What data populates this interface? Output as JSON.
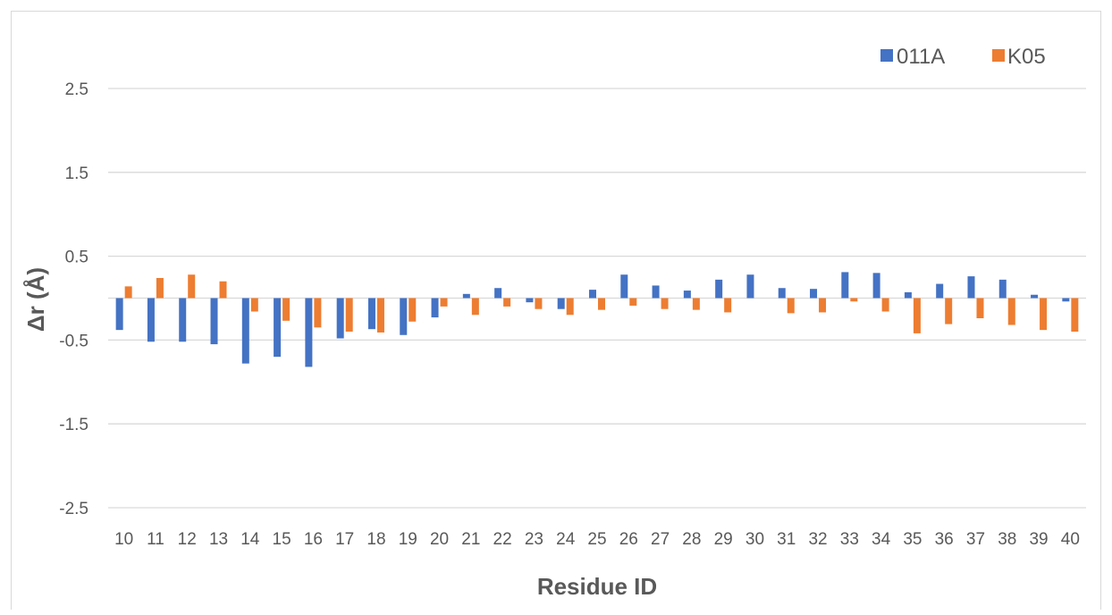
{
  "chart_data": {
    "type": "bar",
    "xlabel": "Residue ID",
    "ylabel": "Δr (Å)",
    "ylim": [
      -2.5,
      2.5
    ],
    "yticks": [
      2.5,
      1.5,
      0.5,
      -0.5,
      -1.5,
      -2.5
    ],
    "grid": true,
    "legend_position": "top-right",
    "categories": [
      "10",
      "11",
      "12",
      "13",
      "14",
      "15",
      "16",
      "17",
      "18",
      "19",
      "20",
      "21",
      "22",
      "23",
      "24",
      "25",
      "26",
      "27",
      "28",
      "29",
      "30",
      "31",
      "32",
      "33",
      "34",
      "35",
      "36",
      "37",
      "38",
      "39",
      "40"
    ],
    "series": [
      {
        "name": "011A",
        "color": "#4472C4",
        "values": [
          -0.38,
          -0.52,
          -0.52,
          -0.55,
          -0.78,
          -0.7,
          -0.82,
          -0.48,
          -0.37,
          -0.44,
          -0.23,
          0.05,
          0.12,
          -0.05,
          -0.13,
          0.1,
          0.28,
          0.15,
          0.09,
          0.22,
          0.28,
          0.12,
          0.11,
          0.31,
          0.3,
          0.07,
          0.17,
          0.26,
          0.22,
          0.04,
          -0.04
        ]
      },
      {
        "name": "K05",
        "color": "#ED7D31",
        "values": [
          0.14,
          0.24,
          0.28,
          0.2,
          -0.16,
          -0.27,
          -0.35,
          -0.4,
          -0.41,
          -0.28,
          -0.1,
          -0.2,
          -0.1,
          -0.13,
          -0.2,
          -0.14,
          -0.09,
          -0.13,
          -0.14,
          -0.17,
          0.0,
          -0.18,
          -0.17,
          -0.04,
          -0.16,
          -0.42,
          -0.31,
          -0.24,
          -0.32,
          -0.38,
          -0.4
        ]
      }
    ]
  }
}
